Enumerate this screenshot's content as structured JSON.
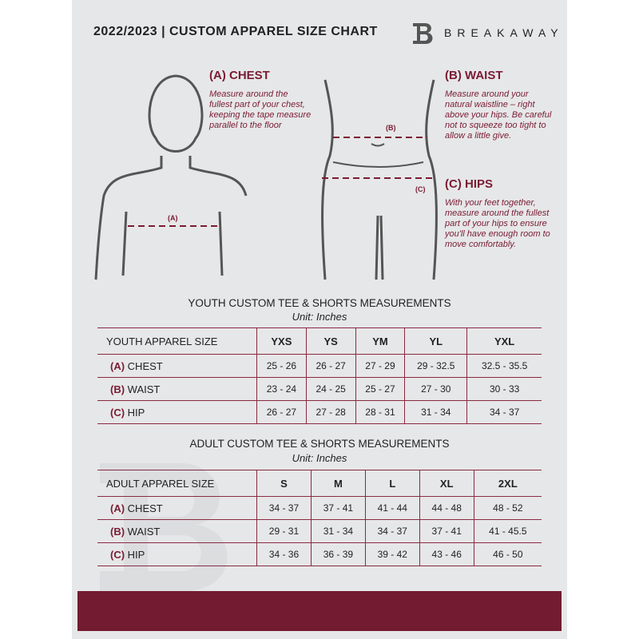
{
  "header": {
    "title": "2022/2023  |  CUSTOM APPAREL SIZE CHART",
    "brand": "BREAKAWAY"
  },
  "measures": [
    {
      "heading": "(A) CHEST",
      "label": "(A)",
      "description": "Measure around the fullest part of your chest, keeping the tape measure parallel to the floor"
    },
    {
      "heading": "(B) WAIST",
      "label": "(B)",
      "description": "Measure around your natural waistline – right above your hips. Be careful not to squeeze too tight to allow a little give."
    },
    {
      "heading": "(C) HIPS",
      "label": "(C)",
      "description": "With your feet together, measure around the fullest part of your hips to ensure you'll have enough room to move comfortably."
    }
  ],
  "youth": {
    "title": "YOUTH CUSTOM TEE & SHORTS MEASUREMENTS",
    "unit": "Unit: Inches",
    "header": "YOUTH APPAREL SIZE",
    "sizes": [
      "YXS",
      "YS",
      "YM",
      "YL",
      "YXL"
    ],
    "rows": [
      {
        "code": "(A)",
        "name": "CHEST",
        "values": [
          "25 - 26",
          "26 - 27",
          "27 - 29",
          "29 - 32.5",
          "32.5 - 35.5"
        ]
      },
      {
        "code": "(B)",
        "name": "WAIST",
        "values": [
          "23 - 24",
          "24 - 25",
          "25 - 27",
          "27 - 30",
          "30 - 33"
        ]
      },
      {
        "code": "(C)",
        "name": "HIP",
        "values": [
          "26 - 27",
          "27 - 28",
          "28 - 31",
          "31 - 34",
          "34 - 37"
        ]
      }
    ]
  },
  "adult": {
    "title": "ADULT CUSTOM TEE & SHORTS MEASUREMENTS",
    "unit": "Unit: Inches",
    "header": "ADULT APPAREL SIZE",
    "sizes": [
      "S",
      "M",
      "L",
      "XL",
      "2XL"
    ],
    "rows": [
      {
        "code": "(A)",
        "name": "CHEST",
        "values": [
          "34 - 37",
          "37 - 41",
          "41 - 44",
          "44 - 48",
          "48 - 52"
        ]
      },
      {
        "code": "(B)",
        "name": "WAIST",
        "values": [
          "29 - 31",
          "31 - 34",
          "34 - 37",
          "37 - 41",
          "41 - 45.5"
        ]
      },
      {
        "code": "(C)",
        "name": "HIP",
        "values": [
          "34 - 36",
          "36 - 39",
          "39 - 42",
          "43 - 46",
          "46 - 50"
        ]
      }
    ]
  },
  "colors": {
    "accent": "#7a1b33",
    "band": "#731b30",
    "panel": "#e6e7e8"
  }
}
